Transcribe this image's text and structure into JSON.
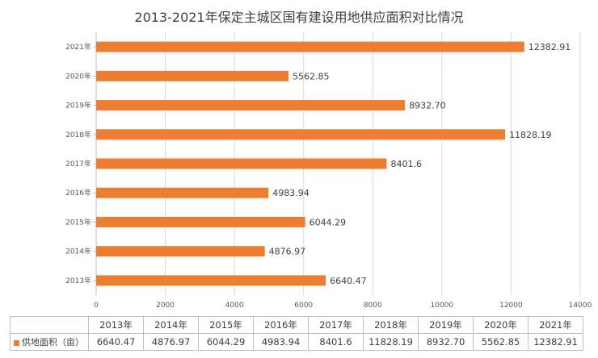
{
  "chart_data": {
    "type": "bar",
    "orientation": "horizontal",
    "title": "2013-2021年保定主城区国有建设用地供应面积对比情况",
    "categories": [
      "2013年",
      "2014年",
      "2015年",
      "2016年",
      "2017年",
      "2018年",
      "2019年",
      "2020年",
      "2021年"
    ],
    "series": [
      {
        "name": "供地面积（亩）",
        "values": [
          6640.47,
          4876.97,
          6044.29,
          4983.94,
          8401.6,
          11828.19,
          8932.7,
          5562.85,
          12382.91
        ],
        "labels": [
          "6640.47",
          "4876.97",
          "6044.29",
          "4983.94",
          "8401.6",
          "11828.19",
          "8932.70",
          "5562.85",
          "12382.91"
        ]
      }
    ],
    "xlim": [
      0,
      14000
    ],
    "xticks": [
      "0",
      "2000",
      "4000",
      "6000",
      "8000",
      "10000",
      "12000",
      "14000"
    ],
    "grid": true,
    "legend": "in data table",
    "colors": {
      "bar": "#ed7d31",
      "grid": "#d9d9d9"
    }
  }
}
